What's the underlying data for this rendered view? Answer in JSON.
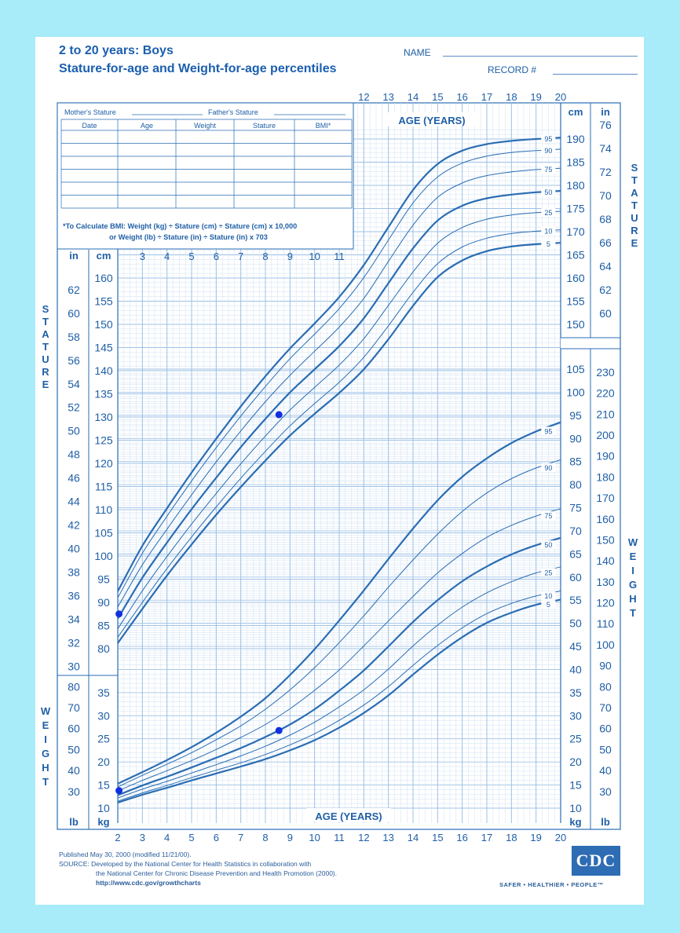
{
  "header": {
    "title_line1": "2 to 20 years: Boys",
    "title_line2": "Stature-for-age and Weight-for-age percentiles",
    "name_label": "NAME",
    "record_label": "RECORD #"
  },
  "record_table": {
    "mothers_stature": "Mother's Stature",
    "fathers_stature": "Father's Stature",
    "columns": [
      "Date",
      "Age",
      "Weight",
      "Stature",
      "BMI*"
    ],
    "bmi_note_1": "*To Calculate BMI: Weight (kg) ÷ Stature (cm) ÷ Stature (cm) x 10,000",
    "bmi_note_2": "or Weight (lb) ÷ Stature (in) ÷ Stature (in) x 703"
  },
  "footer": {
    "published": "Published May 30, 2000 (modified 11/21/00).",
    "source_1": "SOURCE: Developed by the National Center for Health Statistics in collaboration with",
    "source_2": "the National Center for Chronic Disease Prevention and Health Promotion (2000).",
    "url": "http://www.cdc.gov/growthcharts",
    "logo_text": "CDC",
    "tagline": "SAFER • HEALTHIER • PEOPLE™"
  },
  "chart_data": {
    "type": "line",
    "x_label": "AGE (YEARS)",
    "x_ticks": [
      2,
      3,
      4,
      5,
      6,
      7,
      8,
      9,
      10,
      11,
      12,
      13,
      14,
      15,
      16,
      17,
      18,
      19,
      20
    ],
    "stature": {
      "side_label": "STATURE",
      "cm_label": "cm",
      "in_label": "in",
      "ylim_cm": [
        77,
        193
      ],
      "percentile_labels": [
        "95",
        "90",
        "75",
        "50",
        "25",
        "10",
        "5"
      ],
      "x": [
        2,
        3,
        4,
        5,
        6,
        7,
        8,
        9,
        10,
        11,
        12,
        13,
        14,
        15,
        16,
        17,
        18,
        19,
        20
      ],
      "series": [
        {
          "name": "95",
          "bold": true,
          "values": [
            92.4,
            102.2,
            110.3,
            118.0,
            125.3,
            132.3,
            138.8,
            144.8,
            150.2,
            155.9,
            162.8,
            171.0,
            179.0,
            184.6,
            187.5,
            188.9,
            189.6,
            190.0,
            190.3
          ]
        },
        {
          "name": "90",
          "bold": false,
          "values": [
            91.0,
            100.6,
            108.6,
            116.2,
            123.4,
            130.2,
            136.6,
            142.6,
            147.9,
            153.4,
            160.1,
            168.2,
            176.2,
            181.8,
            184.8,
            186.3,
            187.1,
            187.5,
            187.8
          ]
        },
        {
          "name": "75",
          "bold": false,
          "values": [
            89.0,
            98.1,
            105.8,
            113.2,
            120.3,
            127.0,
            133.3,
            139.0,
            144.2,
            149.4,
            155.6,
            163.6,
            171.4,
            177.4,
            180.5,
            182.1,
            182.9,
            183.4,
            183.7
          ]
        },
        {
          "name": "50",
          "bold": true,
          "values": [
            86.5,
            95.3,
            102.9,
            110.1,
            116.9,
            123.5,
            129.6,
            135.3,
            140.3,
            145.3,
            151.3,
            158.9,
            166.4,
            172.4,
            175.6,
            177.2,
            178.0,
            178.5,
            178.8
          ]
        },
        {
          "name": "25",
          "bold": false,
          "values": [
            84.3,
            92.5,
            99.9,
            106.9,
            113.5,
            119.9,
            125.9,
            131.5,
            136.4,
            141.2,
            146.9,
            154.1,
            161.3,
            167.5,
            170.9,
            172.7,
            173.6,
            174.1,
            174.4
          ]
        },
        {
          "name": "10",
          "bold": false,
          "values": [
            82.5,
            90.0,
            97.3,
            104.1,
            110.6,
            116.8,
            122.6,
            128.1,
            132.9,
            137.5,
            142.9,
            149.7,
            156.9,
            163.1,
            166.7,
            168.6,
            169.6,
            170.1,
            170.4
          ]
        },
        {
          "name": "5",
          "bold": true,
          "values": [
            81.2,
            88.6,
            95.8,
            102.5,
            108.9,
            114.9,
            120.6,
            126.0,
            130.7,
            135.2,
            140.3,
            146.8,
            154.0,
            160.2,
            163.8,
            165.8,
            166.8,
            167.3,
            167.6
          ]
        }
      ],
      "points": [
        {
          "age": 2.05,
          "cm": 87.5
        },
        {
          "age": 8.55,
          "cm": 130.5
        }
      ]
    },
    "weight": {
      "side_label": "WEIGHT",
      "kg_label": "kg",
      "lb_label": "lb",
      "ylim_kg": [
        9,
        109
      ],
      "percentile_labels": [
        "95",
        "90",
        "75",
        "50",
        "25",
        "10",
        "5"
      ],
      "x": [
        2,
        3,
        4,
        5,
        6,
        7,
        8,
        9,
        10,
        11,
        12,
        13,
        14,
        15,
        16,
        17,
        18,
        19,
        20
      ],
      "series": [
        {
          "name": "95",
          "bold": true,
          "values": [
            15.3,
            17.8,
            20.4,
            23.2,
            26.3,
            29.8,
            33.8,
            38.8,
            44.4,
            50.6,
            57.1,
            63.9,
            70.5,
            76.6,
            81.7,
            85.7,
            89.0,
            91.5,
            93.5
          ]
        },
        {
          "name": "90",
          "bold": false,
          "values": [
            14.6,
            17.1,
            19.5,
            22.0,
            24.8,
            27.8,
            31.4,
            35.6,
            40.4,
            45.8,
            51.6,
            57.8,
            63.7,
            69.3,
            74.2,
            78.2,
            81.3,
            83.6,
            85.4
          ]
        },
        {
          "name": "75",
          "bold": false,
          "values": [
            13.7,
            16.0,
            18.1,
            20.3,
            22.7,
            25.3,
            28.1,
            31.5,
            35.5,
            39.9,
            45.1,
            50.5,
            55.8,
            60.9,
            65.1,
            68.6,
            71.2,
            73.2,
            74.8
          ]
        },
        {
          "name": "50",
          "bold": true,
          "values": [
            12.8,
            14.9,
            16.8,
            18.8,
            20.9,
            23.0,
            25.4,
            28.1,
            31.4,
            35.4,
            39.8,
            45.0,
            50.3,
            55.0,
            59.1,
            62.3,
            64.9,
            66.9,
            68.5
          ]
        },
        {
          "name": "25",
          "bold": false,
          "values": [
            12.2,
            14.1,
            15.8,
            17.6,
            19.4,
            21.3,
            23.4,
            25.8,
            28.6,
            31.9,
            35.6,
            40.1,
            45.1,
            49.6,
            53.5,
            56.6,
            59.0,
            60.9,
            62.2
          ]
        },
        {
          "name": "10",
          "bold": false,
          "values": [
            11.5,
            13.3,
            14.9,
            16.6,
            18.2,
            19.8,
            21.6,
            23.7,
            26.1,
            29.0,
            32.3,
            36.3,
            40.9,
            45.2,
            49.0,
            52.1,
            54.3,
            55.9,
            57.0
          ]
        },
        {
          "name": "5",
          "bold": true,
          "values": [
            11.2,
            12.9,
            14.4,
            16.0,
            17.5,
            19.0,
            20.6,
            22.5,
            24.7,
            27.4,
            30.6,
            34.4,
            38.9,
            43.2,
            47.0,
            50.1,
            52.3,
            54.0,
            55.1
          ]
        }
      ],
      "points": [
        {
          "age": 2.05,
          "kg": 13.8
        },
        {
          "age": 8.55,
          "kg": 26.8
        }
      ]
    }
  }
}
